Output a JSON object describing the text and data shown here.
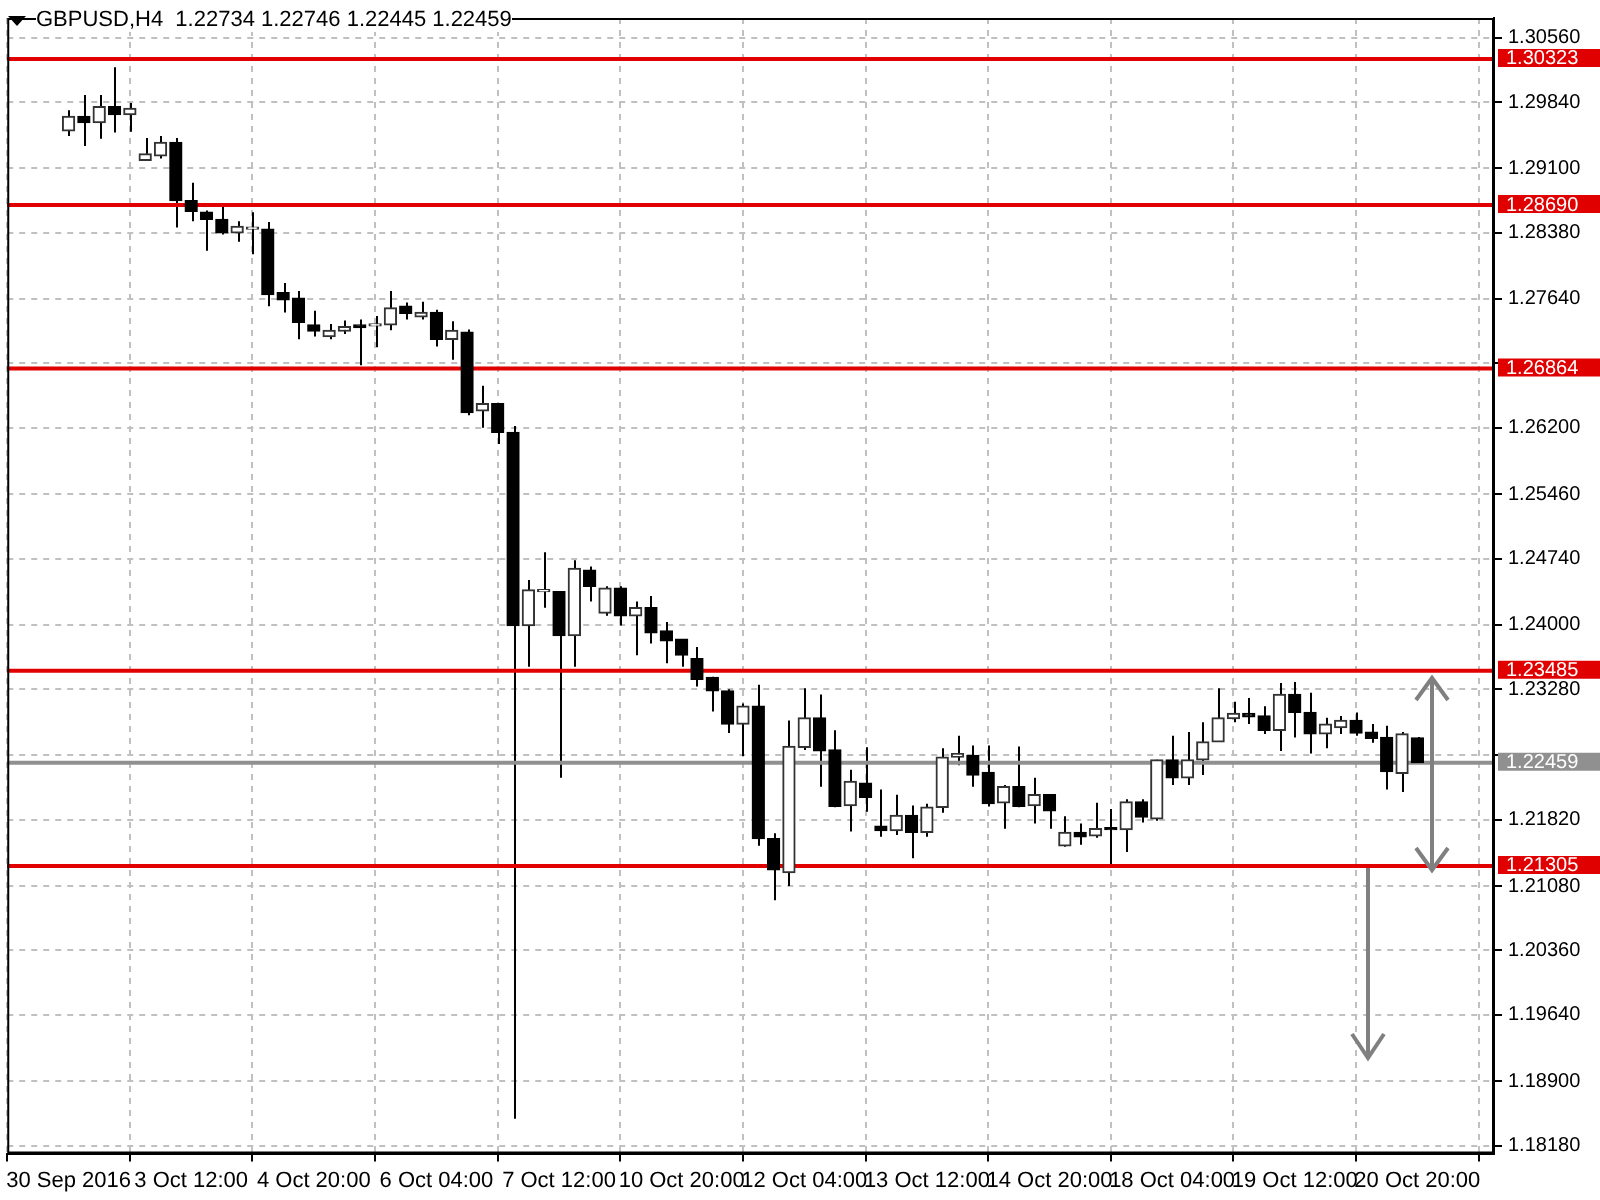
{
  "chart_data": {
    "type": "candlestick",
    "title": "GBPUSD,H4  1.22734 1.22746 1.22445 1.22459",
    "categories": [
      "30 Sep 2016",
      null,
      null,
      null,
      null,
      null,
      null,
      null,
      "3 Oct 12:00",
      null,
      null,
      null,
      null,
      null,
      null,
      null,
      "4 Oct 20:00",
      null,
      null,
      null,
      null,
      null,
      null,
      null,
      "6 Oct 04:00",
      null,
      null,
      null,
      null,
      null,
      null,
      null,
      "7 Oct 12:00",
      null,
      null,
      null,
      null,
      null,
      null,
      null,
      "10 Oct 20:00",
      null,
      null,
      null,
      null,
      null,
      null,
      null,
      "12 Oct 04:00",
      null,
      null,
      null,
      null,
      null,
      null,
      null,
      "13 Oct 12:00",
      null,
      null,
      null,
      null,
      null,
      null,
      null,
      "14 Oct 20:00",
      null,
      null,
      null,
      null,
      null,
      null,
      null,
      "18 Oct 04:00",
      null,
      null,
      null,
      null,
      null,
      null,
      null,
      "19 Oct 12:00",
      null,
      null,
      null,
      null,
      null,
      null,
      null,
      "20 Oct 20:00"
    ],
    "ohlc": [
      [
        1.2952,
        1.2975,
        1.2946,
        1.2968
      ],
      [
        1.2968,
        1.2992,
        1.2935,
        1.2961
      ],
      [
        1.2961,
        1.2992,
        1.2943,
        1.2979
      ],
      [
        1.2979,
        1.3023,
        1.295,
        1.297
      ],
      [
        1.297,
        1.2983,
        1.2951,
        1.2977
      ],
      [
        1.2919,
        1.2944,
        1.2919,
        1.2926
      ],
      [
        1.2924,
        1.2946,
        1.2921,
        1.2939
      ],
      [
        1.2939,
        1.2944,
        1.2844,
        1.2874
      ],
      [
        1.2874,
        1.2894,
        1.2851,
        1.2862
      ],
      [
        1.2861,
        1.2863,
        1.2818,
        1.2853
      ],
      [
        1.2853,
        1.2867,
        1.2836,
        1.2838
      ],
      [
        1.2838,
        1.2851,
        1.2828,
        1.2845
      ],
      [
        1.2842,
        1.2861,
        1.2814,
        1.2843
      ],
      [
        1.2842,
        1.285,
        1.2756,
        1.2769
      ],
      [
        1.2771,
        1.2782,
        1.2749,
        1.2763
      ],
      [
        1.2765,
        1.2773,
        1.2719,
        1.2738
      ],
      [
        1.2735,
        1.2751,
        1.2722,
        1.2728
      ],
      [
        1.2722,
        1.2736,
        1.2719,
        1.2729
      ],
      [
        1.2728,
        1.274,
        1.2725,
        1.2733
      ],
      [
        1.2735,
        1.2741,
        1.269,
        1.2732
      ],
      [
        1.2734,
        1.2745,
        1.271,
        1.2734
      ],
      [
        1.2735,
        1.2773,
        1.2729,
        1.2754
      ],
      [
        1.2756,
        1.276,
        1.2741,
        1.2748
      ],
      [
        1.2744,
        1.2761,
        1.2741,
        1.2749
      ],
      [
        1.2749,
        1.2752,
        1.2711,
        1.2719
      ],
      [
        1.2719,
        1.2739,
        1.2696,
        1.2729
      ],
      [
        1.2727,
        1.273,
        1.2634,
        1.2637
      ],
      [
        1.2639,
        1.2667,
        1.262,
        1.2647
      ],
      [
        1.2647,
        1.2647,
        1.2602,
        1.2615
      ],
      [
        1.2615,
        1.2622,
        1.1848,
        1.2399
      ],
      [
        1.2399,
        1.245,
        1.2353,
        1.2439
      ],
      [
        1.2437,
        1.2481,
        1.2419,
        1.2439
      ],
      [
        1.2437,
        1.2437,
        1.2229,
        1.2388
      ],
      [
        1.2388,
        1.2472,
        1.2353,
        1.2463
      ],
      [
        1.2461,
        1.2465,
        1.2426,
        1.2443
      ],
      [
        1.2413,
        1.2443,
        1.241,
        1.2441
      ],
      [
        1.2441,
        1.2443,
        1.2399,
        1.241
      ],
      [
        1.241,
        1.2426,
        1.2366,
        1.2419
      ],
      [
        1.2419,
        1.2432,
        1.2379,
        1.2391
      ],
      [
        1.2393,
        1.2403,
        1.2357,
        1.2382
      ],
      [
        1.2384,
        1.2384,
        1.2353,
        1.2366
      ],
      [
        1.2362,
        1.2375,
        1.2331,
        1.2339
      ],
      [
        1.2341,
        1.2342,
        1.2303,
        1.2326
      ],
      [
        1.2326,
        1.2328,
        1.2279,
        1.2289
      ],
      [
        1.2289,
        1.2312,
        1.2253,
        1.2309
      ],
      [
        1.2309,
        1.2333,
        1.2153,
        1.2161
      ],
      [
        1.2161,
        1.2167,
        1.2092,
        1.2126
      ],
      [
        1.2123,
        1.2293,
        1.2108,
        1.2264
      ],
      [
        1.2263,
        1.2329,
        1.226,
        1.2296
      ],
      [
        1.2296,
        1.2322,
        1.2219,
        1.2259
      ],
      [
        1.226,
        1.2282,
        1.2196,
        1.2197
      ],
      [
        1.2198,
        1.2238,
        1.2169,
        1.2225
      ],
      [
        1.2223,
        1.2263,
        1.2191,
        1.2207
      ],
      [
        1.2175,
        1.2216,
        1.2163,
        1.217
      ],
      [
        1.217,
        1.221,
        1.2165,
        1.2187
      ],
      [
        1.2187,
        1.2198,
        1.2139,
        1.2168
      ],
      [
        1.2168,
        1.22,
        1.2163,
        1.2196
      ],
      [
        1.2196,
        1.2262,
        1.219,
        1.2252
      ],
      [
        1.2252,
        1.2276,
        1.2243,
        1.2256
      ],
      [
        1.2254,
        1.2265,
        1.2219,
        1.2232
      ],
      [
        1.2235,
        1.2265,
        1.2197,
        1.22
      ],
      [
        1.2201,
        1.2221,
        1.2172,
        1.2219
      ],
      [
        1.2219,
        1.2264,
        1.2196,
        1.2197
      ],
      [
        1.2198,
        1.2229,
        1.2178,
        1.221
      ],
      [
        1.221,
        1.221,
        1.2172,
        1.2192
      ],
      [
        1.2153,
        1.2186,
        1.2152,
        1.2168
      ],
      [
        1.2168,
        1.2178,
        1.2154,
        1.2163
      ],
      [
        1.2164,
        1.2201,
        1.2162,
        1.2172
      ],
      [
        1.2173,
        1.2194,
        1.2131,
        1.2171
      ],
      [
        1.2171,
        1.2205,
        1.2146,
        1.2202
      ],
      [
        1.2202,
        1.2205,
        1.2179,
        1.2185
      ],
      [
        1.2183,
        1.2249,
        1.2181,
        1.2249
      ],
      [
        1.2249,
        1.2276,
        1.2221,
        1.2229
      ],
      [
        1.2229,
        1.228,
        1.2221,
        1.2249
      ],
      [
        1.2249,
        1.2291,
        1.2232,
        1.2269
      ],
      [
        1.2269,
        1.2329,
        1.2269,
        1.2296
      ],
      [
        1.2295,
        1.2314,
        1.2291,
        1.2301
      ],
      [
        1.2301,
        1.2318,
        1.2289,
        1.2297
      ],
      [
        1.2298,
        1.2309,
        1.2278,
        1.2282
      ],
      [
        1.2282,
        1.2335,
        1.2259,
        1.2322
      ],
      [
        1.2322,
        1.2336,
        1.2274,
        1.2302
      ],
      [
        1.2302,
        1.2324,
        1.2256,
        1.2278
      ],
      [
        1.2278,
        1.2296,
        1.2262,
        1.2289
      ],
      [
        1.2285,
        1.2298,
        1.2278,
        1.2293
      ],
      [
        1.2293,
        1.2302,
        1.2276,
        1.2279
      ],
      [
        1.228,
        1.2289,
        1.2268,
        1.2273
      ],
      [
        1.2274,
        1.2287,
        1.2216,
        1.2236
      ],
      [
        1.2234,
        1.228,
        1.2213,
        1.2278
      ],
      [
        1.22734,
        1.22746,
        1.22445,
        1.22459
      ]
    ],
    "ylim": [
      1.1809,
      1.3078
    ],
    "yticks": [
      {
        "value": 1.3056,
        "label": "1.30560"
      },
      {
        "value": 1.2984,
        "label": "1.29840"
      },
      {
        "value": 1.291,
        "label": "1.29100"
      },
      {
        "value": 1.2838,
        "label": "1.28380"
      },
      {
        "value": 1.2764,
        "label": "1.27640"
      },
      {
        "value": 1.2692,
        "label": null
      },
      {
        "value": 1.262,
        "label": "1.26200"
      },
      {
        "value": 1.2546,
        "label": "1.25460"
      },
      {
        "value": 1.2474,
        "label": "1.24740"
      },
      {
        "value": 1.24,
        "label": "1.24000"
      },
      {
        "value": 1.2328,
        "label": "1.23280"
      },
      {
        "value": 1.2254,
        "label": null
      },
      {
        "value": 1.2182,
        "label": "1.21820"
      },
      {
        "value": 1.2108,
        "label": "1.21080"
      },
      {
        "value": 1.2036,
        "label": "1.20360"
      },
      {
        "value": 1.1964,
        "label": "1.19640"
      },
      {
        "value": 1.189,
        "label": "1.18900"
      },
      {
        "value": 1.1818,
        "label": "1.18180"
      }
    ],
    "ref_lines": [
      {
        "axis": "y",
        "value": 1.30323,
        "label": "1.30323",
        "color": "#e00000"
      },
      {
        "axis": "y",
        "value": 1.2869,
        "label": "1.28690",
        "color": "#e00000"
      },
      {
        "axis": "y",
        "value": 1.26864,
        "label": "1.26864",
        "color": "#e00000"
      },
      {
        "axis": "y",
        "value": 1.23485,
        "label": "1.23485",
        "color": "#e00000"
      },
      {
        "axis": "y",
        "value": 1.21305,
        "label": "1.21305",
        "color": "#e00000"
      },
      {
        "axis": "y",
        "value": 1.22459,
        "label": "1.22459",
        "color": "#909090"
      }
    ],
    "grid": true
  }
}
